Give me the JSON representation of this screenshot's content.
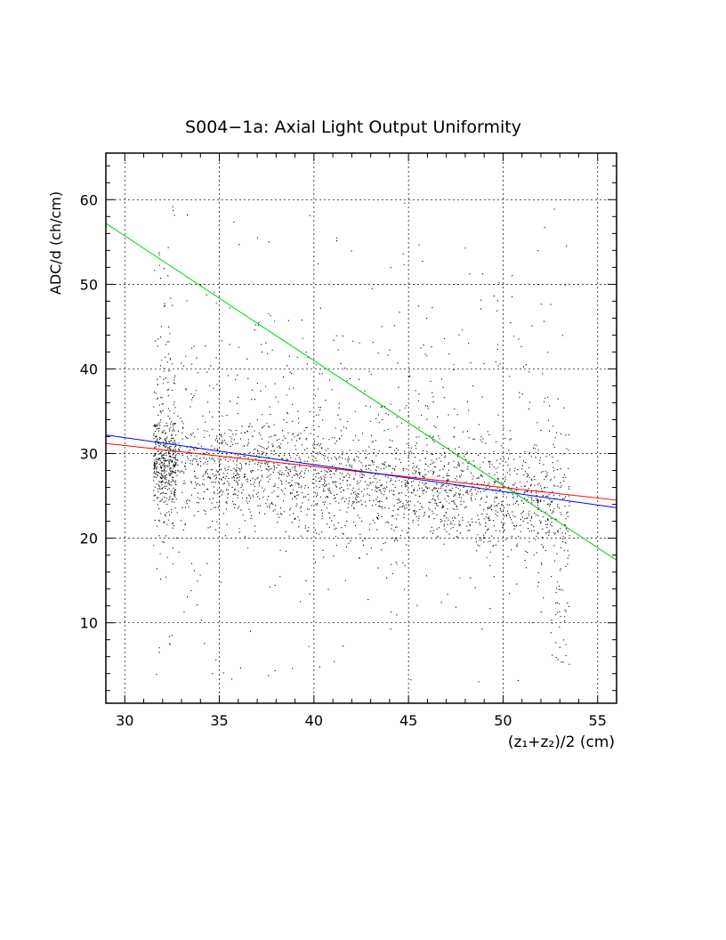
{
  "chart_data": {
    "type": "scatter",
    "title": "S004−1a: Axial Light Output Uniformity",
    "xlabel": "(z₁+z₂)/2 (cm)",
    "ylabel": "ADC/d (ch/cm)",
    "xlim": [
      29,
      56
    ],
    "ylim": [
      0.5,
      65.5
    ],
    "x_ticks": [
      30,
      35,
      40,
      45,
      50,
      55
    ],
    "y_ticks": [
      10,
      20,
      30,
      40,
      50,
      60
    ],
    "grid": true,
    "scatter_summary": {
      "x_range": [
        31.5,
        53.5
      ],
      "y_band_center_at_x": [
        [
          32,
          28.5
        ],
        [
          40,
          27.5
        ],
        [
          48,
          25.5
        ],
        [
          53,
          23
        ]
      ],
      "approx_points": 16000
    },
    "fit_lines": [
      {
        "color": "#ff0000",
        "x": [
          29,
          56
        ],
        "y": [
          31.2,
          24.5
        ]
      },
      {
        "color": "#0000ff",
        "x": [
          29,
          56
        ],
        "y": [
          32.2,
          23.6
        ]
      },
      {
        "color": "#00cc00",
        "x": [
          29,
          56
        ],
        "y": [
          57.2,
          17.4
        ]
      }
    ],
    "colors": {
      "points": "#000000",
      "grid": "#000000",
      "axes": "#000000"
    }
  }
}
